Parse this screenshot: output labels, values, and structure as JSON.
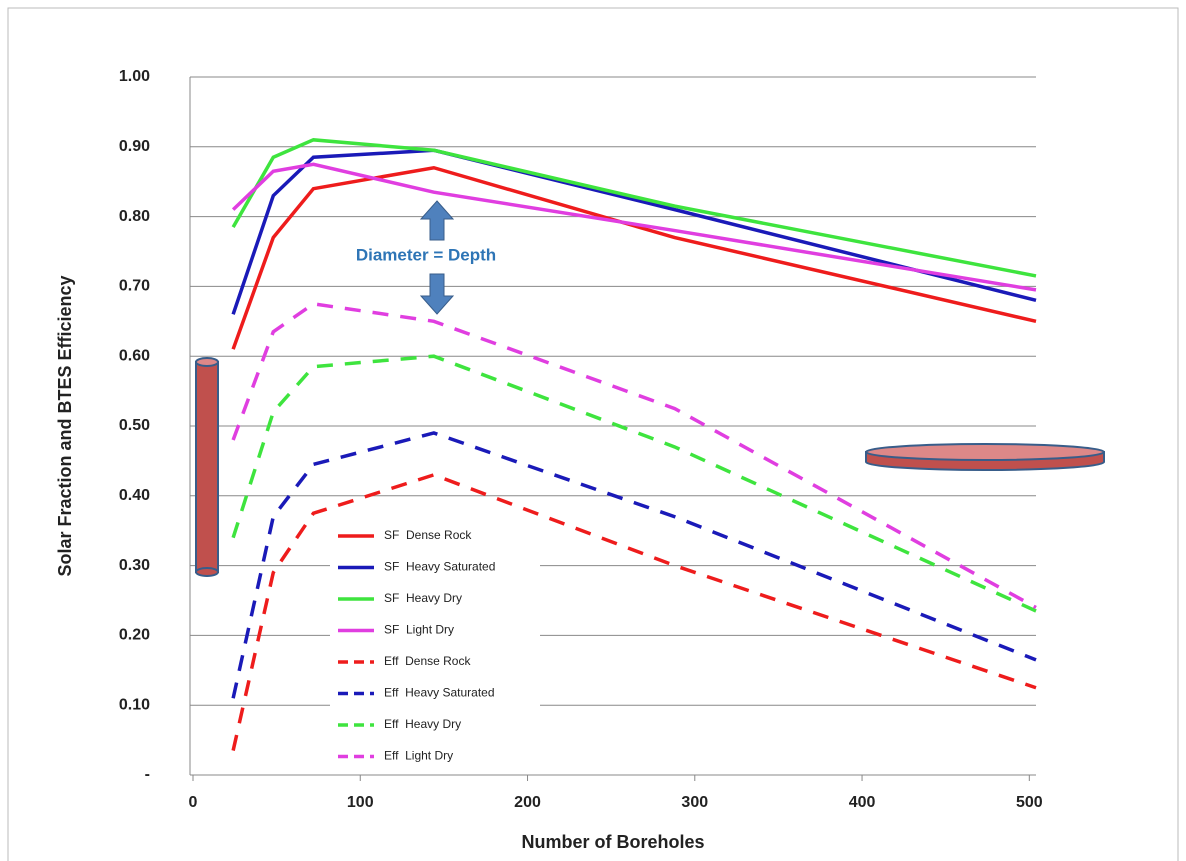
{
  "chart_data": {
    "type": "line",
    "x_label": "Number of Boreholes",
    "y_label": "Solar Fraction and BTES Efficiency",
    "annotation": "Diameter = Depth",
    "x": [
      24,
      48,
      72,
      144,
      288,
      504
    ],
    "xlim": [
      0,
      504
    ],
    "xticks": [
      0,
      100,
      200,
      300,
      400,
      500
    ],
    "ylim": [
      0,
      1
    ],
    "yticks": [
      {
        "value": 0,
        "label": "-"
      },
      {
        "value": 0.1,
        "label": "0.10"
      },
      {
        "value": 0.2,
        "label": "0.20"
      },
      {
        "value": 0.3,
        "label": "0.30"
      },
      {
        "value": 0.4,
        "label": "0.40"
      },
      {
        "value": 0.5,
        "label": "0.50"
      },
      {
        "value": 0.6,
        "label": "0.60"
      },
      {
        "value": 0.7,
        "label": "0.70"
      },
      {
        "value": 0.8,
        "label": "0.80"
      },
      {
        "value": 0.9,
        "label": "0.90"
      },
      {
        "value": 1,
        "label": "1.00"
      }
    ],
    "grid": true,
    "series": [
      {
        "name": "SF  Dense Rock",
        "color": "#ee1c1c",
        "dashed": false,
        "values": [
          0.61,
          0.77,
          0.84,
          0.87,
          0.77,
          0.65
        ]
      },
      {
        "name": "SF  Heavy Saturated",
        "color": "#1a1ab8",
        "dashed": false,
        "values": [
          0.66,
          0.83,
          0.885,
          0.895,
          0.81,
          0.68
        ]
      },
      {
        "name": "SF  Heavy Dry",
        "color": "#3ee43e",
        "dashed": false,
        "values": [
          0.785,
          0.885,
          0.91,
          0.895,
          0.815,
          0.715
        ]
      },
      {
        "name": "SF  Light Dry",
        "color": "#e03ee0",
        "dashed": false,
        "values": [
          0.81,
          0.865,
          0.875,
          0.835,
          0.78,
          0.695
        ]
      },
      {
        "name": "Eff  Dense Rock",
        "color": "#ee1c1c",
        "dashed": true,
        "values": [
          0.035,
          0.29,
          0.375,
          0.43,
          0.3,
          0.125
        ]
      },
      {
        "name": "Eff  Heavy Saturated",
        "color": "#1a1ab8",
        "dashed": true,
        "values": [
          0.11,
          0.37,
          0.445,
          0.49,
          0.37,
          0.165
        ]
      },
      {
        "name": "Eff  Heavy Dry",
        "color": "#3ee43e",
        "dashed": true,
        "values": [
          0.34,
          0.52,
          0.585,
          0.6,
          0.47,
          0.235
        ]
      },
      {
        "name": "Eff  Light Dry",
        "color": "#e03ee0",
        "dashed": true,
        "values": [
          0.48,
          0.635,
          0.675,
          0.65,
          0.525,
          0.24
        ]
      }
    ]
  }
}
